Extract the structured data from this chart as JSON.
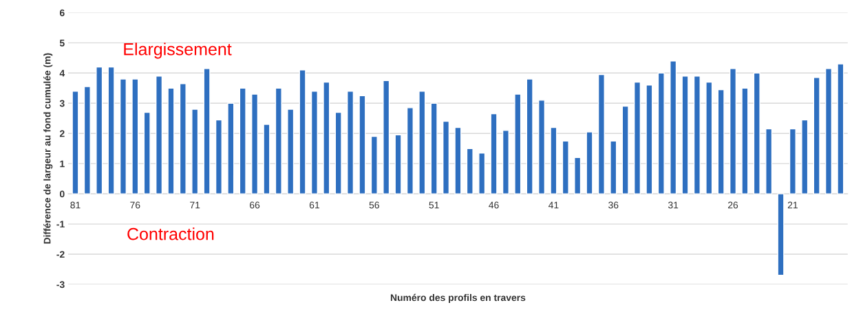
{
  "chart_data": {
    "type": "bar",
    "xlabel": "Numéro des profils en travers",
    "ylabel": "Différence de largeur au fond cumulée (m)",
    "categories": [
      "81",
      null,
      null,
      null,
      null,
      "76",
      null,
      null,
      null,
      null,
      "71",
      null,
      null,
      null,
      null,
      "66",
      null,
      null,
      null,
      null,
      "61",
      null,
      null,
      null,
      null,
      "56",
      null,
      null,
      null,
      null,
      "51",
      null,
      null,
      null,
      null,
      "46",
      null,
      null,
      null,
      null,
      "41",
      null,
      null,
      null,
      null,
      "36",
      null,
      null,
      null,
      null,
      "31",
      null,
      null,
      null,
      null,
      "26",
      null,
      null,
      null,
      null,
      "21",
      null,
      null,
      null,
      null
    ],
    "values": [
      3.4,
      3.55,
      4.2,
      4.2,
      3.8,
      3.8,
      2.7,
      3.9,
      3.5,
      3.65,
      2.8,
      4.15,
      2.45,
      3.0,
      3.5,
      3.3,
      2.3,
      3.5,
      2.8,
      4.1,
      3.4,
      3.7,
      2.7,
      3.4,
      3.25,
      1.9,
      3.75,
      1.95,
      2.85,
      3.4,
      3.0,
      2.4,
      2.2,
      1.5,
      1.35,
      2.65,
      2.1,
      3.3,
      3.8,
      3.1,
      2.2,
      1.75,
      1.2,
      2.05,
      3.95,
      1.75,
      2.9,
      3.7,
      3.6,
      4.0,
      4.4,
      3.9,
      3.9,
      3.7,
      3.45,
      4.15,
      3.5,
      4.0,
      2.15,
      -2.7,
      2.15,
      2.45,
      3.85,
      4.15,
      4.3
    ],
    "color": "#2e6fc0",
    "ylim": [
      -3,
      6
    ],
    "yticks": [
      -3,
      -2,
      -1,
      0,
      1,
      2,
      3,
      4,
      5,
      6
    ],
    "grid": "y",
    "annotations": [
      "Elargissement",
      "Contraction"
    ]
  }
}
